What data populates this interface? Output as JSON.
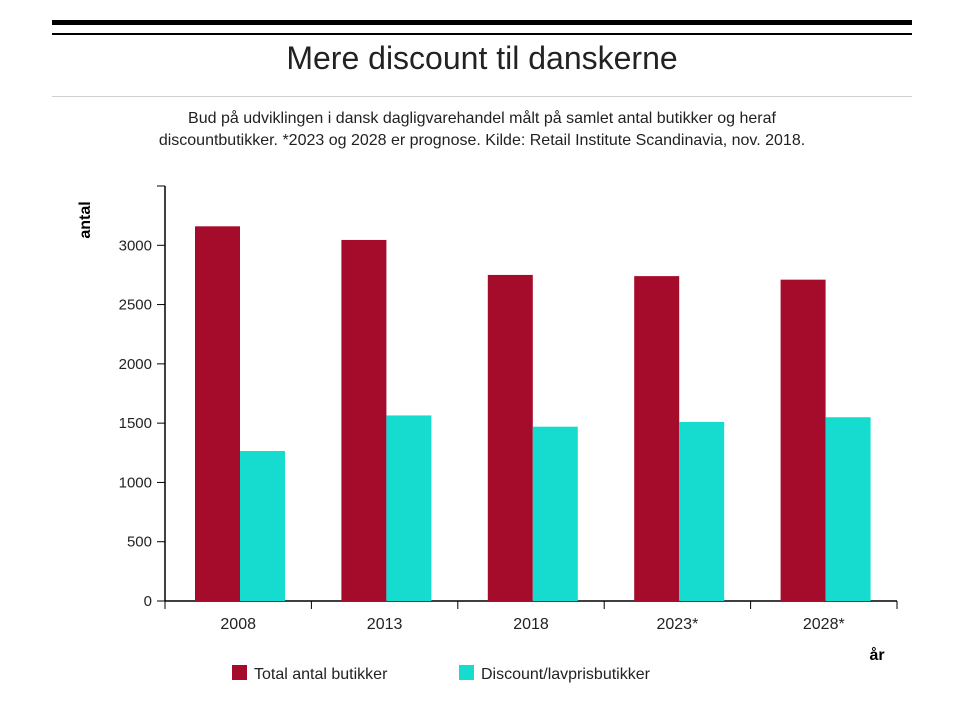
{
  "header": {
    "title": "Mere discount til danskerne",
    "subtitle_line1": "Bud på udviklingen i dansk dagligvarehandel målt på samlet antal butikker og heraf",
    "subtitle_line2": "discountbutikker. *2023 og 2028 er prognose. Kilde: Retail Institute Scandinavia, nov. 2018."
  },
  "chart_data": {
    "type": "bar",
    "title": "Mere discount til danskerne",
    "xlabel": "år",
    "ylabel": "antal",
    "categories": [
      "2008",
      "2013",
      "2018",
      "2023*",
      "2028*"
    ],
    "series": [
      {
        "name": "Total antal butikker",
        "color": "#a50b2a",
        "values": [
          3160,
          3045,
          2750,
          2740,
          2710
        ]
      },
      {
        "name": "Discount/lavprisbutikker",
        "color": "#16dccf",
        "values": [
          1265,
          1565,
          1470,
          1510,
          1550
        ]
      }
    ],
    "ylim": [
      0,
      3500
    ],
    "yticks": [
      0,
      500,
      1000,
      1500,
      2000,
      2500,
      3000
    ],
    "grid": false,
    "legend_position": "bottom"
  }
}
